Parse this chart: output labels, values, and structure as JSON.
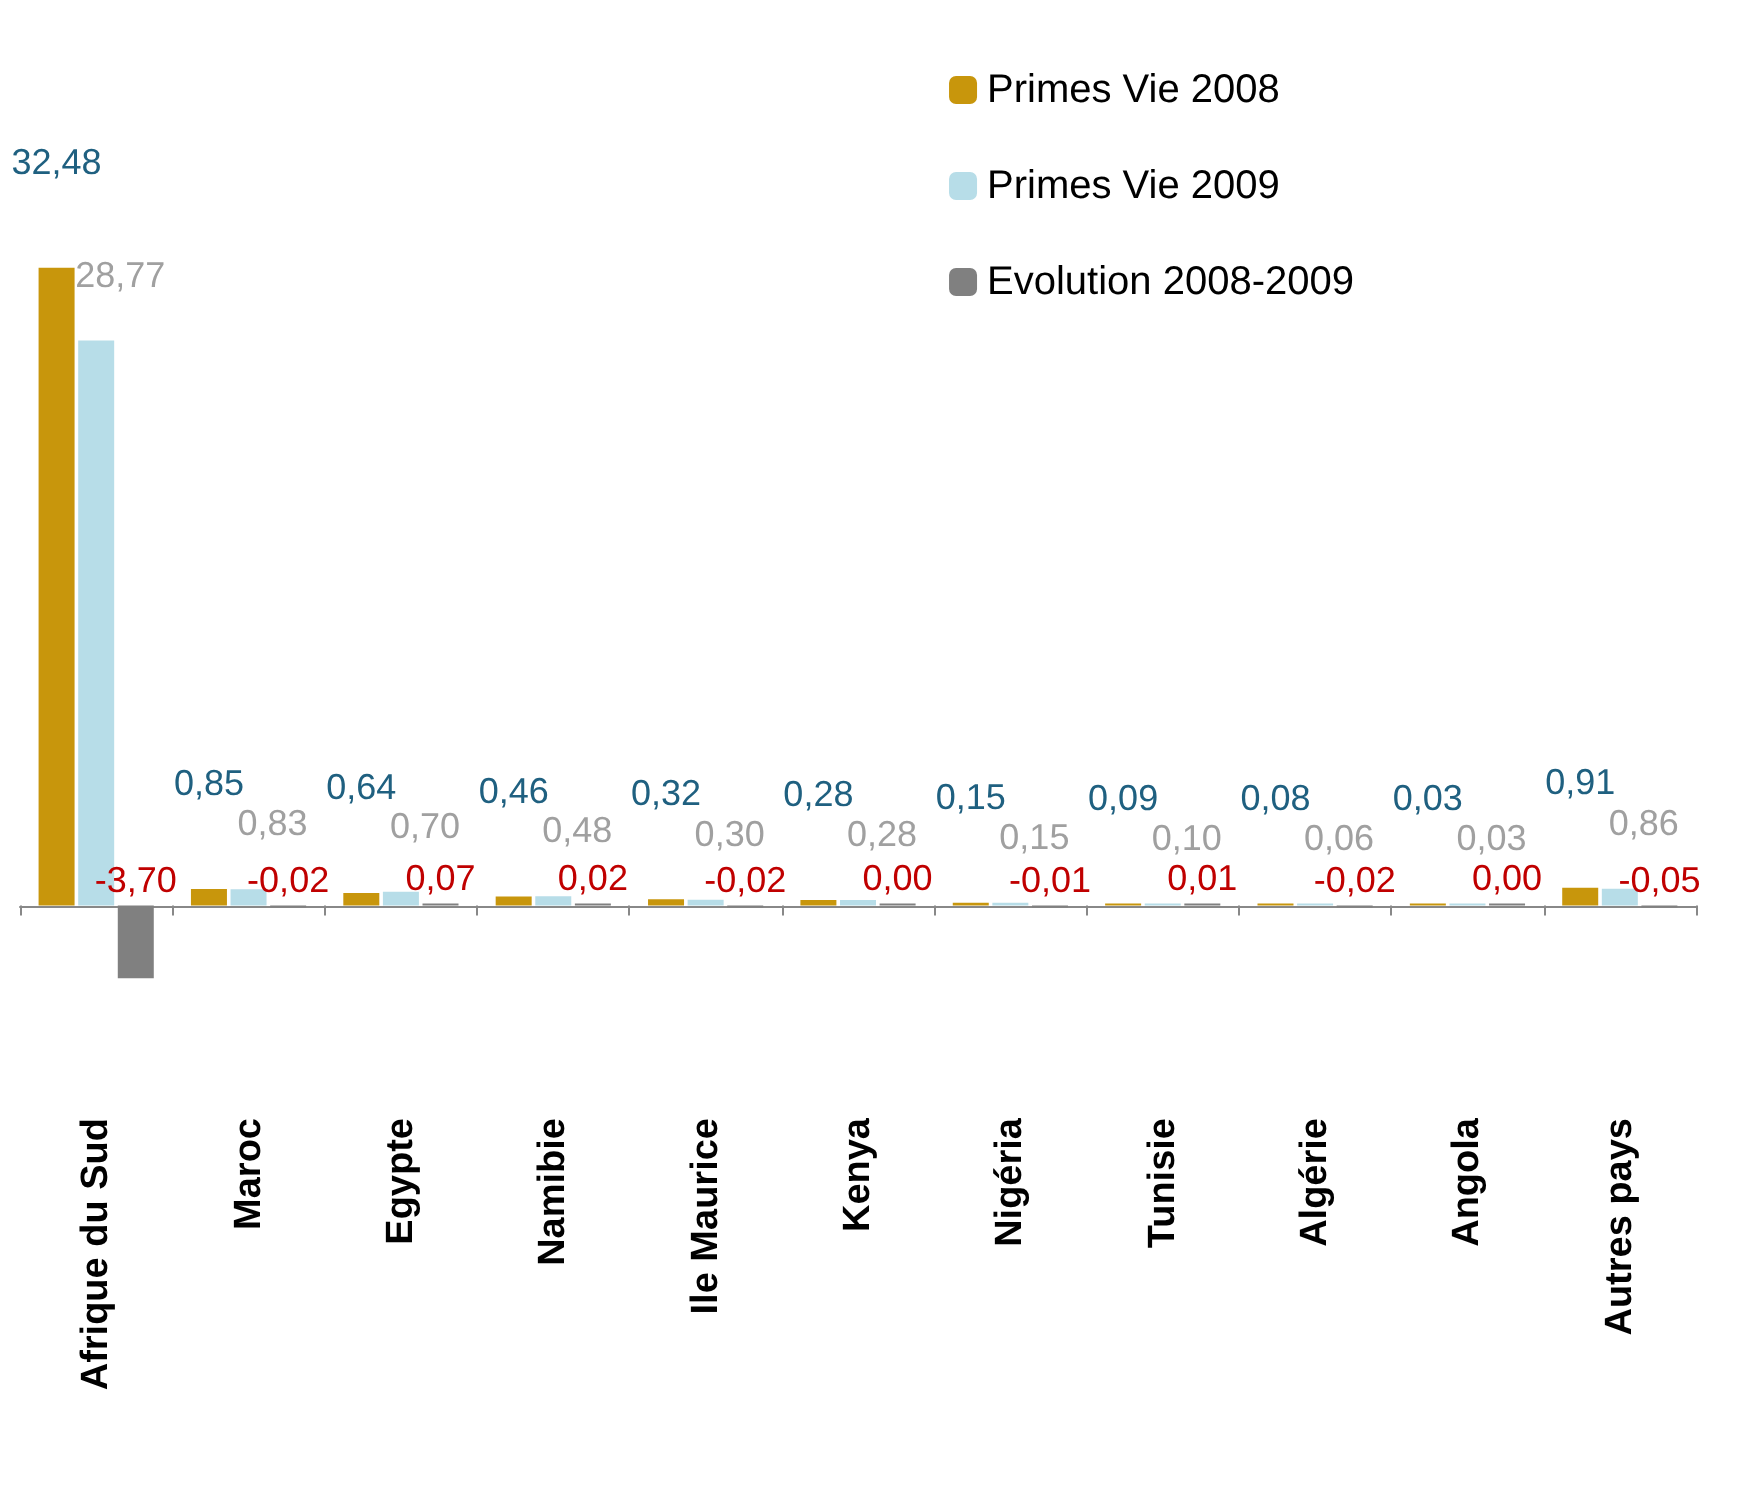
{
  "chart_data": {
    "type": "bar",
    "categories": [
      "Afrique du Sud",
      "Maroc",
      "Egypte",
      "Namibie",
      "Ile Maurice",
      "Kenya",
      "Nigéria",
      "Tunisie",
      "Algérie",
      "Angola",
      "Autres pays"
    ],
    "series": [
      {
        "name": "Primes Vie 2008",
        "color": "#c8960c",
        "values": [
          32.48,
          0.85,
          0.64,
          0.46,
          0.32,
          0.28,
          0.15,
          0.09,
          0.08,
          0.03,
          0.91
        ],
        "value_labels": [
          "32,48",
          "0,85",
          "0,64",
          "0,46",
          "0,32",
          "0,28",
          "0,15",
          "0,09",
          "0,08",
          "0,03",
          "0,91"
        ]
      },
      {
        "name": "Primes Vie 2009",
        "color": "#b7dde8",
        "values": [
          28.77,
          0.83,
          0.7,
          0.48,
          0.3,
          0.28,
          0.15,
          0.1,
          0.06,
          0.03,
          0.86
        ],
        "value_labels": [
          "28,77",
          "0,83",
          "0,70",
          "0,48",
          "0,30",
          "0,28",
          "0,15",
          "0,10",
          "0,06",
          "0,03",
          "0,86"
        ]
      },
      {
        "name": "Evolution 2008-2009",
        "color": "#808080",
        "values": [
          -3.7,
          -0.02,
          0.07,
          0.02,
          -0.02,
          0.0,
          -0.01,
          0.01,
          -0.02,
          0.0,
          -0.05
        ],
        "value_labels": [
          "-3,70",
          "-0,02",
          "0,07",
          "0,02",
          "-0,02",
          "0,00",
          "-0,01",
          "0,01",
          "-0,02",
          "0,00",
          "-0,05"
        ]
      }
    ],
    "legend": "top right",
    "grid": false
  }
}
